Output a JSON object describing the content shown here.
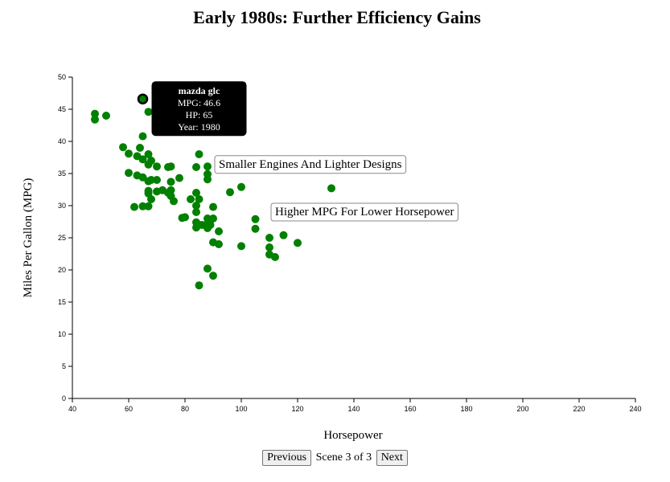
{
  "chart_data": {
    "type": "scatter",
    "title": "Early 1980s: Further Efficiency Gains",
    "xlabel": "Horsepower",
    "ylabel": "Miles Per Gallon (MPG)",
    "xlim": [
      40,
      240
    ],
    "ylim": [
      0,
      50
    ],
    "xticks": [
      40,
      60,
      80,
      100,
      120,
      140,
      160,
      180,
      200,
      220,
      240
    ],
    "yticks": [
      0,
      5,
      10,
      15,
      20,
      25,
      30,
      35,
      40,
      45,
      50
    ],
    "grid": false,
    "point_color": "#008000",
    "series": [
      {
        "points": [
          [
            48,
            44.3
          ],
          [
            48,
            43.4
          ],
          [
            52,
            44.0
          ],
          [
            58,
            39.1
          ],
          [
            60,
            38.1
          ],
          [
            60,
            35.1
          ],
          [
            62,
            29.8
          ],
          [
            63,
            37.7
          ],
          [
            63,
            34.7
          ],
          [
            64,
            39.0
          ],
          [
            65,
            46.6
          ],
          [
            65,
            40.8
          ],
          [
            65,
            37.2
          ],
          [
            65,
            34.4
          ],
          [
            65,
            29.9
          ],
          [
            67,
            44.6
          ],
          [
            67,
            38.0
          ],
          [
            67,
            36.4
          ],
          [
            67,
            33.8
          ],
          [
            67,
            32.3
          ],
          [
            67,
            31.9
          ],
          [
            67,
            29.9
          ],
          [
            68,
            37.0
          ],
          [
            68,
            34.0
          ],
          [
            68,
            31.0
          ],
          [
            70,
            34.0
          ],
          [
            70,
            32.2
          ],
          [
            70,
            36.1
          ],
          [
            72,
            32.4
          ],
          [
            74,
            36.0
          ],
          [
            74,
            32.0
          ],
          [
            75,
            36.1
          ],
          [
            75,
            33.7
          ],
          [
            75,
            32.4
          ],
          [
            75,
            31.5
          ],
          [
            76,
            30.7
          ],
          [
            78,
            34.3
          ],
          [
            79,
            28.1
          ],
          [
            80,
            28.2
          ],
          [
            82,
            31.0
          ],
          [
            84,
            36.0
          ],
          [
            84,
            32.0
          ],
          [
            84,
            29.0
          ],
          [
            84,
            30.0
          ],
          [
            84,
            27.4
          ],
          [
            84,
            26.6
          ],
          [
            85,
            38.0
          ],
          [
            85,
            31.0
          ],
          [
            85,
            17.6
          ],
          [
            86,
            27.0
          ],
          [
            88,
            36.1
          ],
          [
            88,
            34.9
          ],
          [
            88,
            34.1
          ],
          [
            88,
            28.0
          ],
          [
            88,
            26.5
          ],
          [
            88,
            27.2
          ],
          [
            88,
            20.2
          ],
          [
            89,
            27.0
          ],
          [
            90,
            29.8
          ],
          [
            90,
            28.0
          ],
          [
            90,
            24.3
          ],
          [
            90,
            19.1
          ],
          [
            92,
            37.0
          ],
          [
            92,
            26.0
          ],
          [
            92,
            24.0
          ],
          [
            96,
            32.1
          ],
          [
            100,
            32.9
          ],
          [
            100,
            23.7
          ],
          [
            105,
            27.9
          ],
          [
            105,
            26.4
          ],
          [
            110,
            25.0
          ],
          [
            110,
            23.5
          ],
          [
            110,
            22.4
          ],
          [
            112,
            22.0
          ],
          [
            115,
            25.4
          ],
          [
            120,
            24.2
          ],
          [
            132,
            32.7
          ]
        ]
      }
    ],
    "highlighted": {
      "name": "mazda glc",
      "mpg_label": "MPG: 46.6",
      "hp_label": "HP: 65",
      "year_label": "Year: 1980",
      "hp": 65,
      "mpg": 46.6
    },
    "annotations": [
      {
        "text": "Smaller Engines And Lighter Designs",
        "hp": 92,
        "mpg": 35.9
      },
      {
        "text": "Higher MPG For Lower Horsepower",
        "hp": 112,
        "mpg": 28.5
      }
    ]
  },
  "nav": {
    "previous_label": "Previous",
    "scene_label": "Scene 3 of 3",
    "next_label": "Next"
  }
}
